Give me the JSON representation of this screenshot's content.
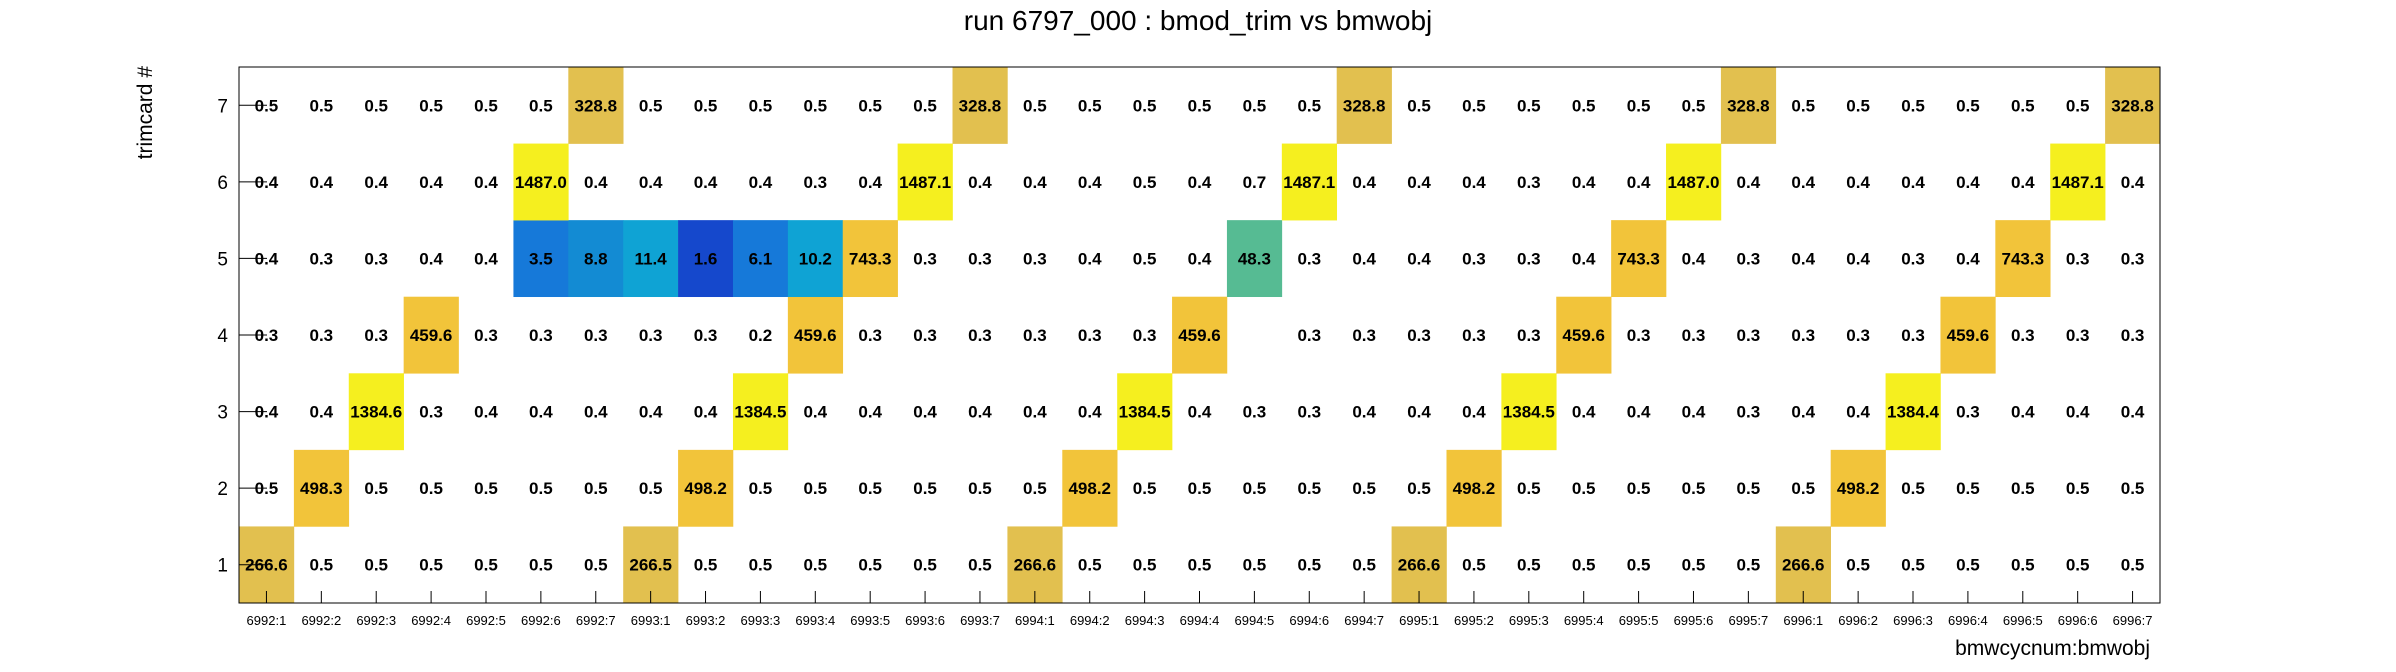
{
  "chart_data": {
    "type": "heatmap",
    "title": "run 6797_000 : bmod_trim vs bmwobj",
    "xlabel": "bmwcycnum:bmwobj",
    "ylabel": "trimcard #",
    "x_categories": [
      "6992:1",
      "6992:2",
      "6992:3",
      "6992:4",
      "6992:5",
      "6992:6",
      "6992:7",
      "6993:1",
      "6993:2",
      "6993:3",
      "6993:4",
      "6993:5",
      "6993:6",
      "6993:7",
      "6994:1",
      "6994:2",
      "6994:3",
      "6994:4",
      "6994:5",
      "6994:6",
      "6994:7",
      "6995:1",
      "6995:2",
      "6995:3",
      "6995:4",
      "6995:5",
      "6995:6",
      "6995:7",
      "6996:1",
      "6996:2",
      "6996:3",
      "6996:4",
      "6996:5",
      "6996:6",
      "6996:7"
    ],
    "y_categories": [
      "1",
      "2",
      "3",
      "4",
      "5",
      "6",
      "7"
    ],
    "values": [
      [
        "266.6",
        "0.5",
        "0.5",
        "0.5",
        "0.5",
        "0.5",
        "0.5",
        "266.5",
        "0.5",
        "0.5",
        "0.5",
        "0.5",
        "0.5",
        "0.5",
        "266.6",
        "0.5",
        "0.5",
        "0.5",
        "0.5",
        "0.5",
        "0.5",
        "266.6",
        "0.5",
        "0.5",
        "0.5",
        "0.5",
        "0.5",
        "0.5",
        "266.6",
        "0.5",
        "0.5",
        "0.5",
        "0.5",
        "0.5",
        "0.5"
      ],
      [
        "0.5",
        "498.3",
        "0.5",
        "0.5",
        "0.5",
        "0.5",
        "0.5",
        "0.5",
        "498.2",
        "0.5",
        "0.5",
        "0.5",
        "0.5",
        "0.5",
        "0.5",
        "498.2",
        "0.5",
        "0.5",
        "0.5",
        "0.5",
        "0.5",
        "0.5",
        "498.2",
        "0.5",
        "0.5",
        "0.5",
        "0.5",
        "0.5",
        "0.5",
        "498.2",
        "0.5",
        "0.5",
        "0.5",
        "0.5",
        "0.5"
      ],
      [
        "0.4",
        "0.4",
        "1384.6",
        "0.3",
        "0.4",
        "0.4",
        "0.4",
        "0.4",
        "0.4",
        "1384.5",
        "0.4",
        "0.4",
        "0.4",
        "0.4",
        "0.4",
        "0.4",
        "1384.5",
        "0.4",
        "0.3",
        "0.3",
        "0.4",
        "0.4",
        "0.4",
        "1384.5",
        "0.4",
        "0.4",
        "0.4",
        "0.3",
        "0.4",
        "0.4",
        "1384.4",
        "0.3",
        "0.4",
        "0.4",
        "0.4"
      ],
      [
        "0.3",
        "0.3",
        "0.3",
        "459.6",
        "0.3",
        "0.3",
        "0.3",
        "0.3",
        "0.3",
        "0.2",
        "459.6",
        "0.3",
        "0.3",
        "0.3",
        "0.3",
        "0.3",
        "0.3",
        "459.6",
        null,
        "0.3",
        "0.3",
        "0.3",
        "0.3",
        "0.3",
        "459.6",
        "0.3",
        "0.3",
        "0.3",
        "0.3",
        "0.3",
        "0.3",
        "459.6",
        "0.3",
        "0.3",
        "0.3"
      ],
      [
        "0.4",
        "0.3",
        "0.3",
        "0.4",
        "0.4",
        "3.5",
        "8.8",
        "11.4",
        "1.6",
        "6.1",
        "10.2",
        "743.3",
        "0.3",
        "0.3",
        "0.3",
        "0.4",
        "0.5",
        "0.4",
        "48.3",
        "0.3",
        "0.4",
        "0.4",
        "0.3",
        "0.3",
        "0.4",
        "743.3",
        "0.4",
        "0.3",
        "0.4",
        "0.4",
        "0.3",
        "0.4",
        "743.3",
        "0.3",
        "0.3"
      ],
      [
        "0.4",
        "0.4",
        "0.4",
        "0.4",
        "0.4",
        "1487.0",
        "0.4",
        "0.4",
        "0.4",
        "0.4",
        "0.3",
        "0.4",
        "1487.1",
        "0.4",
        "0.4",
        "0.4",
        "0.5",
        "0.4",
        "0.7",
        "1487.1",
        "0.4",
        "0.4",
        "0.4",
        "0.3",
        "0.4",
        "0.4",
        "1487.0",
        "0.4",
        "0.4",
        "0.4",
        "0.4",
        "0.4",
        "0.4",
        "1487.1",
        "0.4"
      ],
      [
        "0.5",
        "0.5",
        "0.5",
        "0.5",
        "0.5",
        "0.5",
        "328.8",
        "0.5",
        "0.5",
        "0.5",
        "0.5",
        "0.5",
        "0.5",
        "328.8",
        "0.5",
        "0.5",
        "0.5",
        "0.5",
        "0.5",
        "0.5",
        "328.8",
        "0.5",
        "0.5",
        "0.5",
        "0.5",
        "0.5",
        "0.5",
        "328.8",
        "0.5",
        "0.5",
        "0.5",
        "0.5",
        "0.5",
        "0.5",
        "328.8"
      ]
    ],
    "colors": {
      "high_yellow": "#f5ef1f",
      "gold": "#f2c43a",
      "tan": "#e2c04f",
      "teal": "#56bb93",
      "cyan": "#0fa3d4",
      "light_blue": "#138bd3",
      "blue": "#1679d9",
      "dark_blue": "#1548cc"
    },
    "grid": false,
    "legend": "none"
  }
}
